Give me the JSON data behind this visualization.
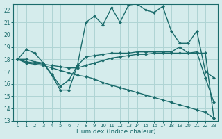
{
  "xlabel": "Humidex (Indice chaleur)",
  "xlim": [
    -0.5,
    23.5
  ],
  "ylim": [
    13,
    22.5
  ],
  "yticks": [
    13,
    14,
    15,
    16,
    17,
    18,
    19,
    20,
    21,
    22
  ],
  "xticks": [
    0,
    1,
    2,
    3,
    4,
    5,
    6,
    7,
    8,
    9,
    10,
    11,
    12,
    13,
    14,
    15,
    16,
    17,
    18,
    19,
    20,
    21,
    22,
    23
  ],
  "bg_color": "#d5ecec",
  "grid_color": "#afd4d4",
  "line_color": "#1a6b6b",
  "line1_x": [
    0,
    1,
    2,
    3,
    4,
    5,
    6,
    7,
    8,
    9,
    10,
    11,
    12,
    13,
    14,
    15,
    16,
    17,
    18,
    19,
    20,
    21,
    22,
    23
  ],
  "line1_y": [
    18.0,
    18.8,
    18.5,
    17.7,
    16.7,
    15.5,
    15.5,
    17.5,
    21.0,
    21.5,
    20.8,
    22.2,
    21.0,
    22.4,
    22.5,
    22.0,
    21.8,
    22.3,
    20.3,
    19.3,
    19.3,
    20.3,
    17.0,
    16.5
  ],
  "line2_x": [
    0,
    1,
    2,
    3,
    4,
    5,
    6,
    7,
    8,
    9,
    10,
    11,
    12,
    13,
    14,
    15,
    16,
    17,
    18,
    19,
    20,
    21,
    22,
    23
  ],
  "line2_y": [
    18.0,
    18.0,
    17.8,
    17.7,
    16.8,
    15.8,
    16.3,
    17.5,
    18.2,
    18.3,
    18.4,
    18.5,
    18.5,
    18.5,
    18.6,
    18.6,
    18.6,
    18.6,
    18.6,
    19.0,
    18.5,
    18.6,
    16.5,
    14.5
  ],
  "line3_x": [
    0,
    1,
    2,
    3,
    4,
    5,
    6,
    7,
    8,
    9,
    10,
    11,
    12,
    13,
    14,
    15,
    16,
    17,
    18,
    19,
    20,
    21,
    22,
    23
  ],
  "line3_y": [
    18.0,
    17.8,
    17.7,
    17.6,
    17.5,
    17.4,
    17.3,
    17.3,
    17.5,
    17.7,
    17.9,
    18.1,
    18.2,
    18.3,
    18.4,
    18.4,
    18.5,
    18.5,
    18.5,
    18.5,
    18.5,
    18.5,
    18.5,
    13.2
  ],
  "line4_x": [
    0,
    1,
    2,
    3,
    4,
    5,
    6,
    7,
    8,
    9,
    10,
    11,
    12,
    13,
    14,
    15,
    16,
    17,
    18,
    19,
    20,
    21,
    22,
    23
  ],
  "line4_y": [
    18.0,
    17.7,
    17.6,
    17.5,
    17.3,
    17.1,
    16.9,
    16.7,
    16.6,
    16.4,
    16.1,
    15.9,
    15.7,
    15.5,
    15.3,
    15.1,
    14.9,
    14.7,
    14.5,
    14.3,
    14.1,
    13.9,
    13.7,
    13.2
  ]
}
